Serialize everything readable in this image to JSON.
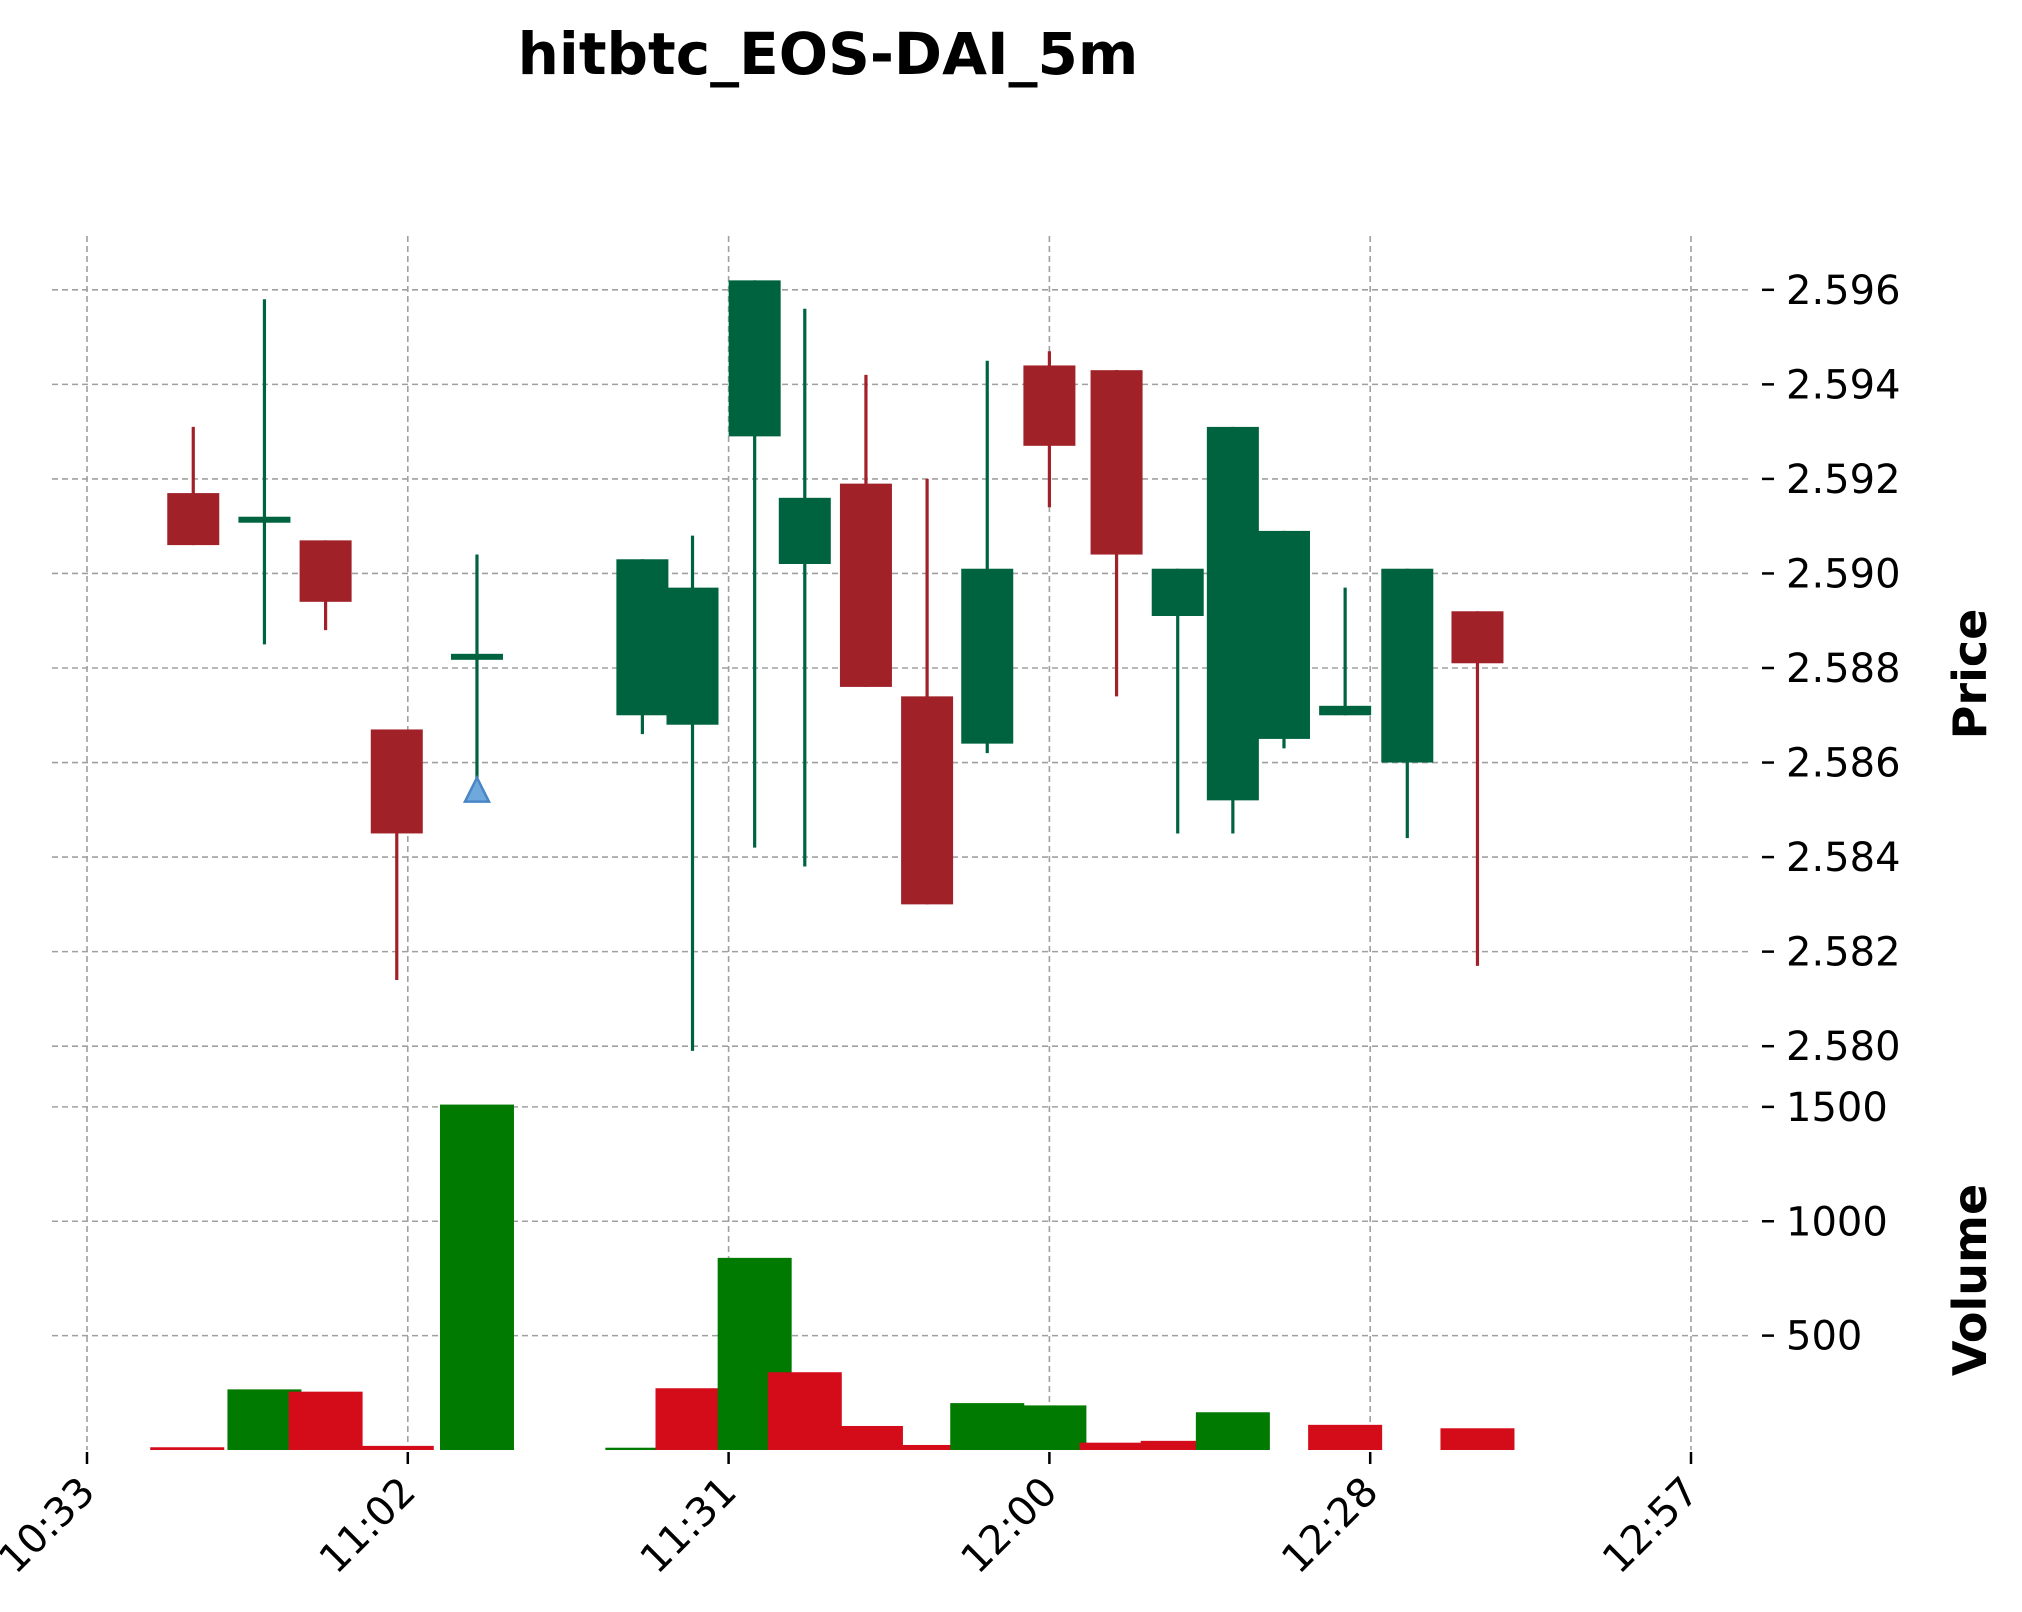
{
  "chart_data": {
    "type": "candlestick",
    "title": "hitbtc_EOS-DAI_5m",
    "x_ticks": [
      "10:33",
      "11:02",
      "11:31",
      "12:00",
      "12:28",
      "12:57"
    ],
    "price_axis": {
      "label": "Price",
      "ylim": [
        2.5792,
        2.5968
      ],
      "ticks": [
        "2.580",
        "2.582",
        "2.584",
        "2.586",
        "2.588",
        "2.590",
        "2.592",
        "2.594",
        "2.596"
      ]
    },
    "volume_axis": {
      "label": "Volume",
      "ylim": [
        0,
        1600
      ],
      "ticks": [
        "500",
        "1000",
        "1500"
      ]
    },
    "grid": true,
    "colors": {
      "up": "#006340",
      "down": "#a02128",
      "volume_up": "#007a00",
      "volume_down": "#d40c19",
      "marker": "#6fa8dc"
    },
    "candles": [
      {
        "x": 10.6,
        "open": 2.5917,
        "high": 2.5931,
        "low": 2.5906,
        "close": 2.5906
      },
      {
        "x": 17.7,
        "open": 2.5911,
        "high": 2.5958,
        "low": 2.5885,
        "close": 2.5912
      },
      {
        "x": 23.8,
        "open": 2.5907,
        "high": 2.5907,
        "low": 2.5888,
        "close": 2.5894
      },
      {
        "x": 30.9,
        "open": 2.5867,
        "high": 2.5867,
        "low": 2.5814,
        "close": 2.5845
      },
      {
        "x": 38.9,
        "open": 2.5883,
        "high": 2.5904,
        "low": 2.5854,
        "close": 2.5883
      },
      {
        "x": 55.4,
        "open": 2.587,
        "high": 2.5903,
        "low": 2.5866,
        "close": 2.5903
      },
      {
        "x": 60.4,
        "open": 2.5868,
        "high": 2.5908,
        "low": 2.5799,
        "close": 2.5897
      },
      {
        "x": 66.6,
        "open": 2.5929,
        "high": 2.5962,
        "low": 2.5842,
        "close": 2.5962
      },
      {
        "x": 71.6,
        "open": 2.5902,
        "high": 2.5956,
        "low": 2.5838,
        "close": 2.5916
      },
      {
        "x": 77.7,
        "open": 2.5919,
        "high": 2.5942,
        "low": 2.5876,
        "close": 2.5876
      },
      {
        "x": 83.8,
        "open": 2.5874,
        "high": 2.592,
        "low": 2.583,
        "close": 2.583
      },
      {
        "x": 89.8,
        "open": 2.5864,
        "high": 2.5945,
        "low": 2.5862,
        "close": 2.5901
      },
      {
        "x": 96.0,
        "open": 2.5944,
        "high": 2.5947,
        "low": 2.5914,
        "close": 2.5927
      },
      {
        "x": 102.7,
        "open": 2.5943,
        "high": 2.5943,
        "low": 2.5874,
        "close": 2.5904
      },
      {
        "x": 108.8,
        "open": 2.5891,
        "high": 2.5901,
        "low": 2.5845,
        "close": 2.5901
      },
      {
        "x": 114.3,
        "open": 2.5852,
        "high": 2.5931,
        "low": 2.5845,
        "close": 2.5931
      },
      {
        "x": 119.4,
        "open": 2.5865,
        "high": 2.5909,
        "low": 2.5863,
        "close": 2.5909
      },
      {
        "x": 125.5,
        "open": 2.587,
        "high": 2.5897,
        "low": 2.587,
        "close": 2.5872
      },
      {
        "x": 131.7,
        "open": 2.586,
        "high": 2.5901,
        "low": 2.5844,
        "close": 2.5901
      },
      {
        "x": 138.7,
        "open": 2.5892,
        "high": 2.5892,
        "low": 2.5817,
        "close": 2.5881
      }
    ],
    "marker": {
      "x": 38.9,
      "price": 2.5853,
      "shape": "triangle-up"
    },
    "volume_bars": [
      {
        "x": 10.0,
        "value": 12,
        "dir": "down"
      },
      {
        "x": 17.7,
        "value": 265,
        "dir": "up"
      },
      {
        "x": 23.8,
        "value": 255,
        "dir": "down"
      },
      {
        "x": 30.9,
        "value": 18,
        "dir": "down"
      },
      {
        "x": 38.9,
        "value": 1510,
        "dir": "up"
      },
      {
        "x": 55.4,
        "value": 10,
        "dir": "up"
      },
      {
        "x": 60.4,
        "value": 270,
        "dir": "down"
      },
      {
        "x": 66.6,
        "value": 840,
        "dir": "up"
      },
      {
        "x": 71.6,
        "value": 340,
        "dir": "down"
      },
      {
        "x": 77.7,
        "value": 105,
        "dir": "down"
      },
      {
        "x": 83.8,
        "value": 22,
        "dir": "down"
      },
      {
        "x": 89.8,
        "value": 205,
        "dir": "up"
      },
      {
        "x": 96.0,
        "value": 195,
        "dir": "up"
      },
      {
        "x": 102.7,
        "value": 32,
        "dir": "down"
      },
      {
        "x": 108.8,
        "value": 40,
        "dir": "down"
      },
      {
        "x": 114.3,
        "value": 165,
        "dir": "up"
      },
      {
        "x": 125.5,
        "value": 110,
        "dir": "down"
      },
      {
        "x": 138.7,
        "value": 95,
        "dir": "down"
      }
    ]
  }
}
